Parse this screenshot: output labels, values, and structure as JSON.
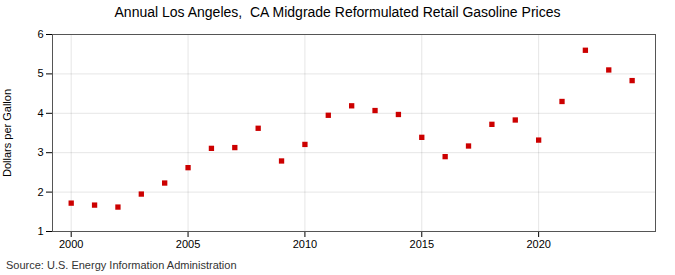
{
  "chart_data": {
    "type": "scatter",
    "title": "Annual Los Angeles,  CA Midgrade Reformulated Retail Gasoline Prices",
    "ylabel": "Dollars per Gallon",
    "source": "Source: U.S. Energy Information Administration",
    "x": [
      2000,
      2001,
      2002,
      2003,
      2004,
      2005,
      2006,
      2007,
      2008,
      2009,
      2010,
      2011,
      2012,
      2013,
      2014,
      2015,
      2016,
      2017,
      2018,
      2019,
      2020,
      2021,
      2022,
      2023,
      2024
    ],
    "values": [
      1.72,
      1.67,
      1.62,
      1.95,
      2.23,
      2.62,
      3.11,
      3.13,
      3.62,
      2.79,
      3.21,
      3.95,
      4.19,
      4.07,
      3.97,
      3.39,
      2.9,
      3.17,
      3.72,
      3.83,
      3.32,
      4.3,
      5.6,
      5.1,
      4.83
    ],
    "color": "#cc0000",
    "marker": "square",
    "xlim": [
      1999.2,
      2025
    ],
    "xticks": [
      2000,
      2005,
      2010,
      2015,
      2020
    ],
    "ylim": [
      1,
      6
    ],
    "yticks": [
      1,
      2,
      3,
      4,
      5,
      6
    ],
    "grid": true
  }
}
